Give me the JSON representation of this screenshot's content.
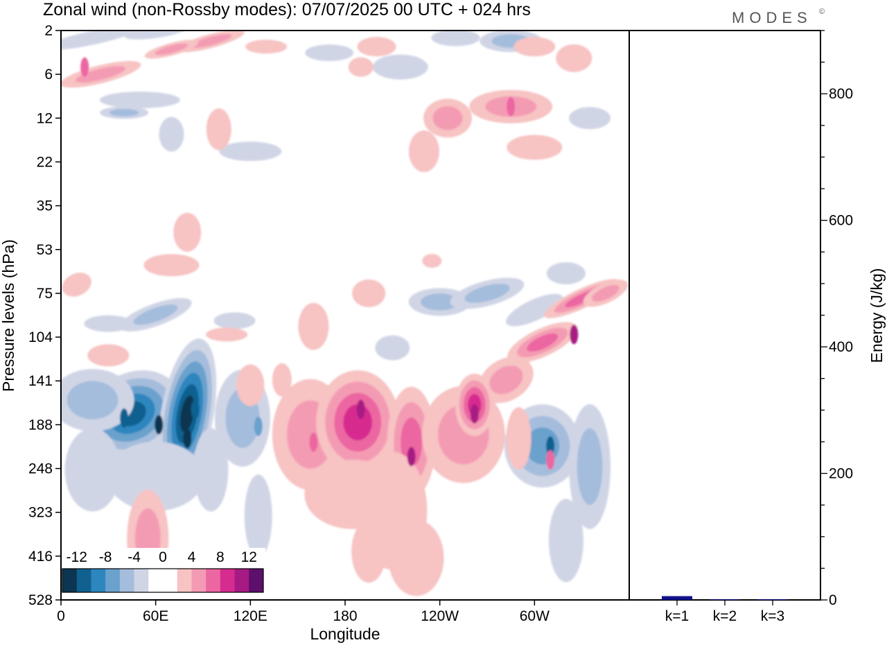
{
  "chart_data": [
    {
      "type": "heatmap",
      "title": "Zonal wind (non-Rossby modes):  07/07/2025  00 UTC  + 024 hrs",
      "xlabel": "Longitude",
      "ylabel": "Pressure levels (hPa)",
      "x_ticks": [
        "0",
        "60E",
        "120E",
        "180",
        "120W",
        "60W"
      ],
      "y_ticks": [
        "2",
        "6",
        "12",
        "22",
        "35",
        "53",
        "75",
        "104",
        "141",
        "188",
        "248",
        "323",
        "416",
        "528"
      ],
      "colorbar": {
        "labels": [
          "-12",
          "-8",
          "-4",
          "0",
          "4",
          "8",
          "12"
        ],
        "colors": [
          "#0b3550",
          "#10618f",
          "#2e86bf",
          "#6aa1cd",
          "#a5bddc",
          "#d0d5e6",
          "#ffffff",
          "#ffffff",
          "#f7c3c3",
          "#f49bb4",
          "#ec66a1",
          "#d62b8f",
          "#a71a83",
          "#5c0f6b"
        ]
      },
      "features": [
        {
          "level": -12,
          "lon": 62,
          "pressure": 188
        },
        {
          "level": -12,
          "lon": 80,
          "pressure": 205
        },
        {
          "level": -8,
          "lon": 40,
          "pressure": 180
        },
        {
          "level": -8,
          "lon": 85,
          "pressure": 170
        },
        {
          "level": -8,
          "lon": 310,
          "pressure": 215
        },
        {
          "level": -4,
          "lon": 125,
          "pressure": 190
        },
        {
          "level": 8,
          "lon": 190,
          "pressure": 170
        },
        {
          "level": 8,
          "lon": 222,
          "pressure": 230
        },
        {
          "level": 8,
          "lon": 262,
          "pressure": 175
        },
        {
          "level": 8,
          "lon": 325,
          "pressure": 102
        },
        {
          "level": 4,
          "lon": 160,
          "pressure": 210
        },
        {
          "level": 4,
          "lon": 310,
          "pressure": 235
        },
        {
          "level": 4,
          "lon": 15,
          "pressure": 5
        },
        {
          "level": 4,
          "lon": 285,
          "pressure": 10
        }
      ]
    },
    {
      "type": "bar",
      "ylabel": "Energy (J/kg)",
      "categories": [
        "k=1",
        "k=2",
        "k=3"
      ],
      "values": [
        6,
        1,
        1
      ],
      "ylim": [
        0,
        900
      ],
      "y_ticks": [
        0,
        200,
        400,
        600,
        800
      ]
    }
  ],
  "brand": "MODES",
  "brand_mark": "©",
  "colors": {
    "bar": "#12128a"
  }
}
